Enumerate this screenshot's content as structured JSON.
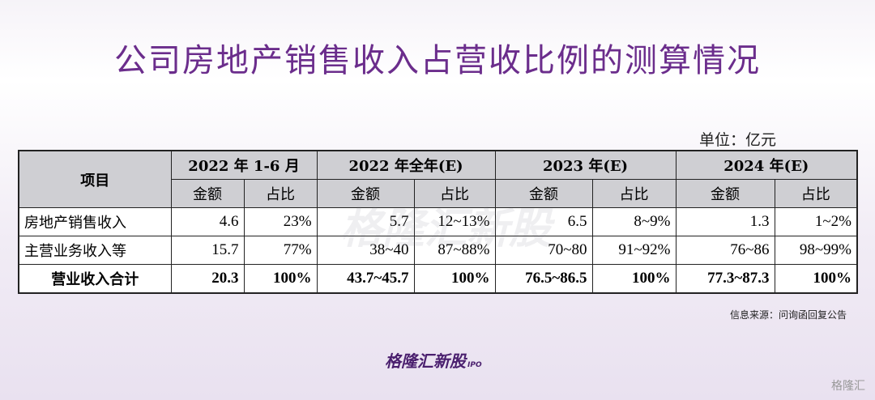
{
  "header": {
    "title": "公司房地产销售收入占营收比例的测算情况"
  },
  "unit": "单位：亿元",
  "table": {
    "corner": "项目",
    "periods": [
      "2022 年 1-6 月",
      "2022 年全年(E)",
      "2023 年(E)",
      "2024 年(E)"
    ],
    "subheaders": [
      "金额",
      "占比",
      "金额",
      "占比",
      "金额",
      "占比",
      "金额",
      "占比"
    ],
    "rows": [
      [
        "房地产销售收入",
        "4.6",
        "23%",
        "5.7",
        "12~13%",
        "6.5",
        "8~9%",
        "1.3",
        "1~2%"
      ],
      [
        "主营业务收入等",
        "15.7",
        "77%",
        "38~40",
        "87~88%",
        "70~80",
        "91~92%",
        "76~86",
        "98~99%"
      ],
      [
        "营业收入合计",
        "20.3",
        "100%",
        "43.7~45.7",
        "100%",
        "76.5~86.5",
        "100%",
        "77.3~87.3",
        "100%"
      ]
    ]
  },
  "source": "信息来源：问询函回复公告",
  "logo": {
    "name": "格隆汇新股",
    "tag": "IPO"
  },
  "watermark": "格隆汇"
}
